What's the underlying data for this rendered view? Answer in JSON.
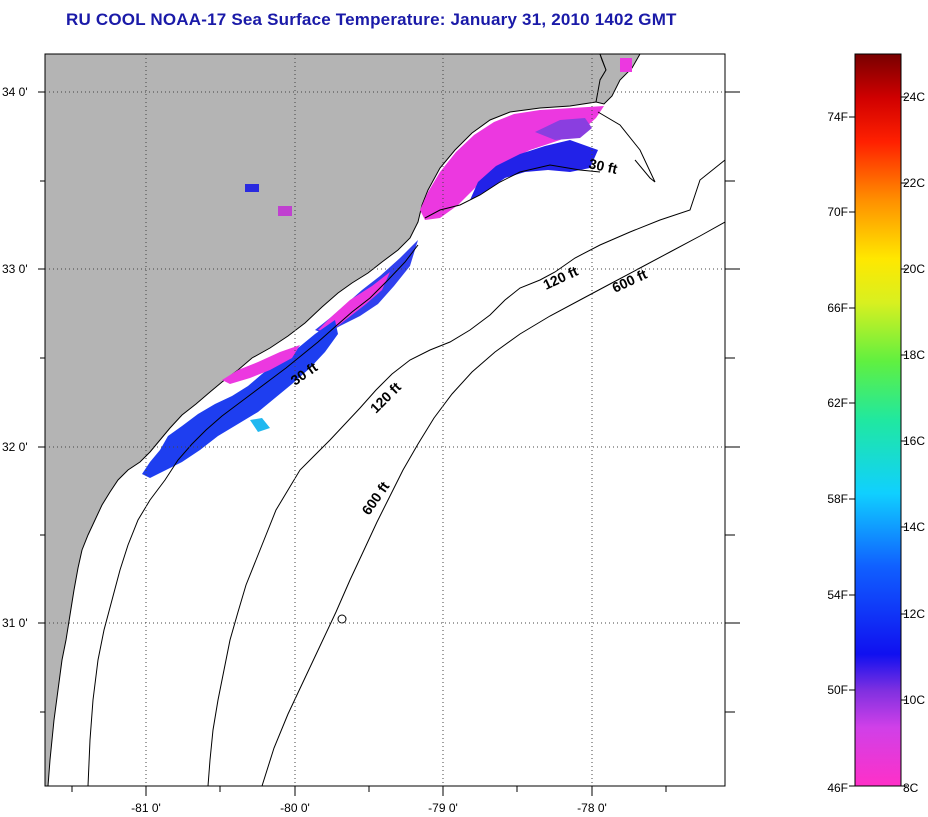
{
  "title": "RU COOL  NOAA-17  Sea Surface Temperature:  January 31, 2010 1402 GMT",
  "map": {
    "lat_labels": [
      "34 0'",
      "33 0'",
      "32 0'",
      "31 0'"
    ],
    "lon_labels": [
      "-81 0'",
      "-80 0'",
      "-79 0'",
      "-78 0'"
    ],
    "depth_labels": [
      "30 ft",
      "120 ft",
      "600 ft",
      "30 ft",
      "120 ft",
      "600 ft"
    ],
    "colors": {
      "land": "#b4b4b4",
      "ocean": "#ffffff",
      "grid": "#000000"
    }
  },
  "colorbar": {
    "fahrenheit_labels": [
      "74F",
      "70F",
      "66F",
      "62F",
      "58F",
      "54F",
      "50F",
      "46F"
    ],
    "celsius_labels": [
      "24C",
      "22C",
      "20C",
      "18C",
      "16C",
      "14C",
      "12C",
      "10C",
      "8C"
    ],
    "range_c": [
      8,
      25
    ]
  }
}
